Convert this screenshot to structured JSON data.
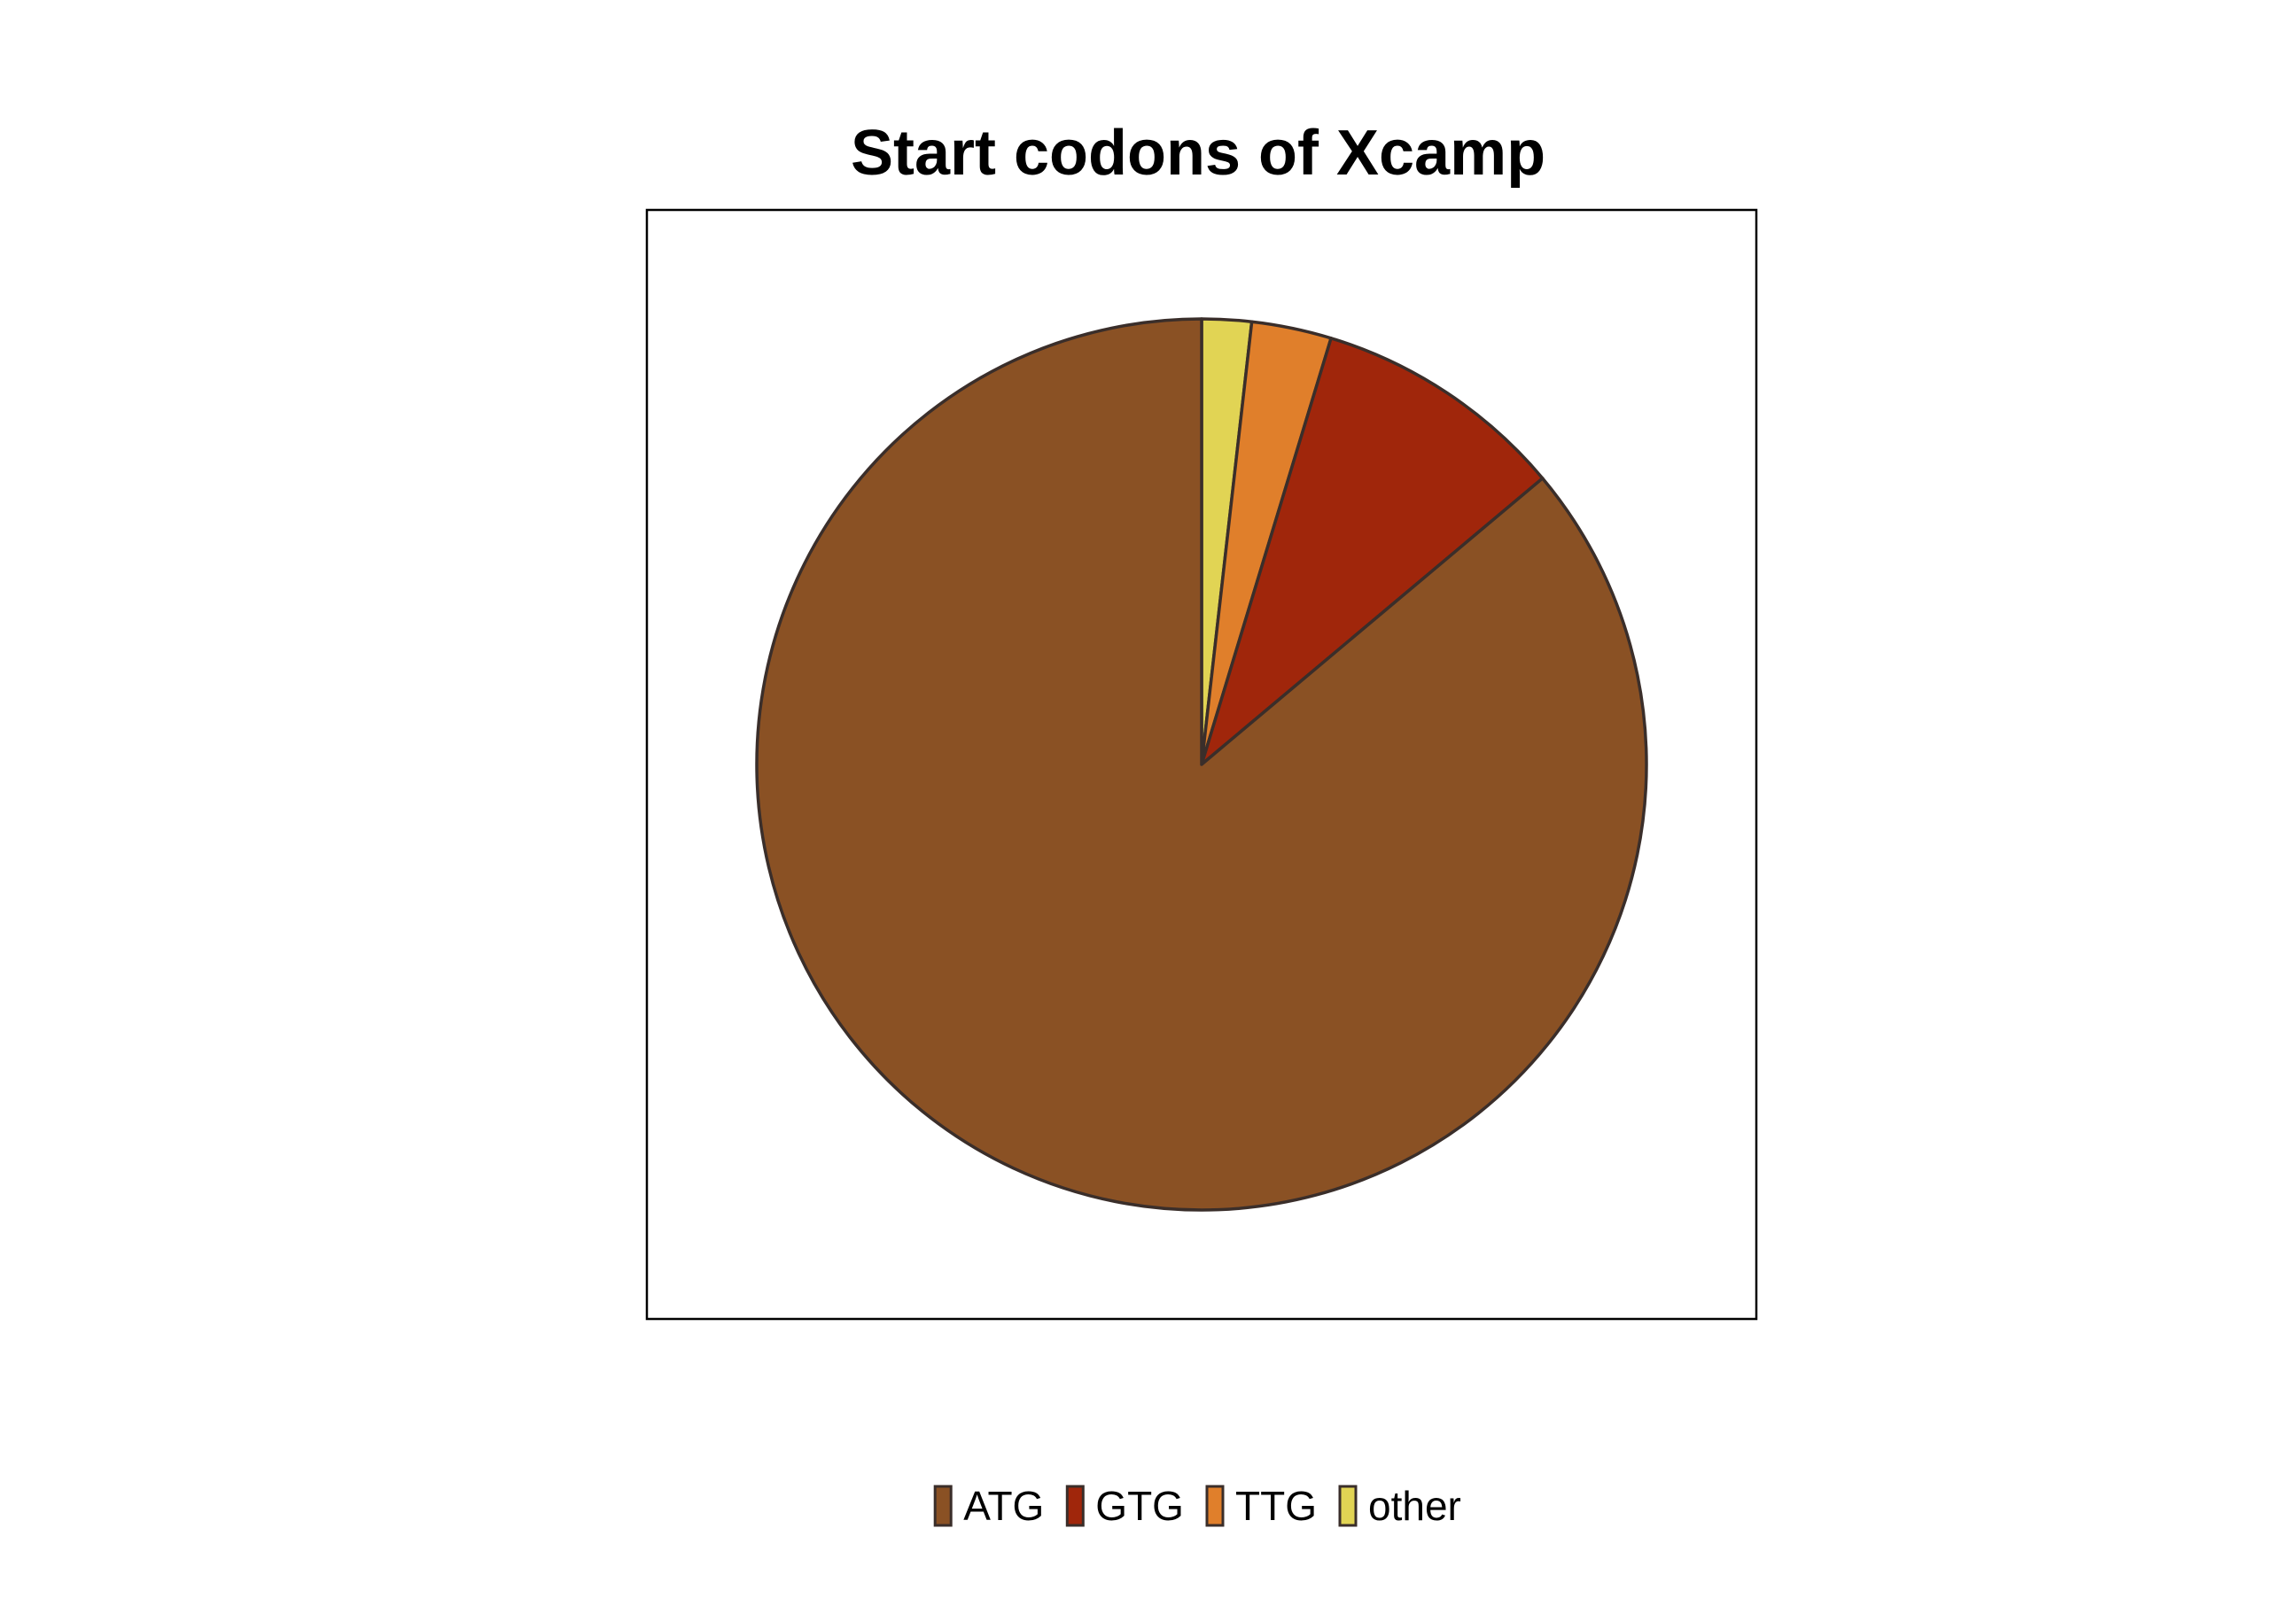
{
  "chart_data": {
    "type": "pie",
    "title": "Start codons of Xcamp",
    "start_angle_deg": 90,
    "direction": "clockwise",
    "legend_position": "bottom",
    "slice_border_color": "#3a2e2a",
    "slices": [
      {
        "label": "other",
        "value": 1.8,
        "color": "#E1D454"
      },
      {
        "label": "TTG",
        "value": 2.9,
        "color": "#E07F2B"
      },
      {
        "label": "GTG",
        "value": 9.2,
        "color": "#A0260B"
      },
      {
        "label": "ATG",
        "value": 86.1,
        "color": "#8A5124"
      }
    ],
    "legend": [
      {
        "label": "ATG",
        "color": "#8A5124"
      },
      {
        "label": "GTG",
        "color": "#A0260B"
      },
      {
        "label": "TTG",
        "color": "#E07F2B"
      },
      {
        "label": "other",
        "color": "#E1D454"
      }
    ]
  }
}
